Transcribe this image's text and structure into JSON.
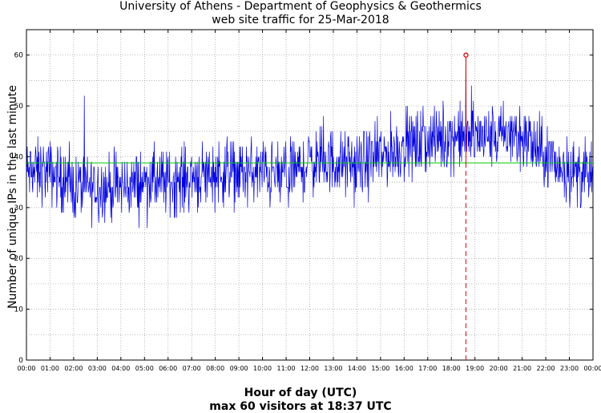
{
  "chart_data": {
    "type": "line",
    "title": "University of Athens - Department of Geophysics & Geothermics",
    "subtitle": "web site traffic for 25-Mar-2018",
    "xlabel": "Hour of day (UTC)",
    "xlabel2": "max 60 visitors at 18:37 UTC",
    "ylabel": "Number of unique IPs in the last minute",
    "x_ticks": [
      "00:00",
      "01:00",
      "02:00",
      "03:00",
      "04:00",
      "05:00",
      "06:00",
      "07:00",
      "08:00",
      "09:00",
      "10:00",
      "11:00",
      "12:00",
      "13:00",
      "14:00",
      "15:00",
      "16:00",
      "17:00",
      "18:00",
      "19:00",
      "20:00",
      "21:00",
      "22:00",
      "23:00",
      "00:00"
    ],
    "y_ticks": [
      0,
      10,
      20,
      30,
      40,
      50,
      60
    ],
    "xlim": [
      0,
      24
    ],
    "ylim": [
      0,
      65
    ],
    "grid": true,
    "hourly_level": [
      37,
      37,
      34,
      34,
      34,
      35,
      35,
      36,
      37,
      37,
      37,
      36,
      39,
      39,
      38,
      40,
      42,
      43,
      44,
      44,
      44,
      44,
      40,
      37,
      36
    ],
    "noise_amplitude": 4,
    "mean_line": 38.8,
    "max_value": 60,
    "max_time": "18:37",
    "max_x_hours": 18.617,
    "colors": {
      "series": "#0000dd",
      "mean": "#00cc00",
      "max_marker": "#dd0000",
      "grid": "#9a9a9a"
    }
  }
}
